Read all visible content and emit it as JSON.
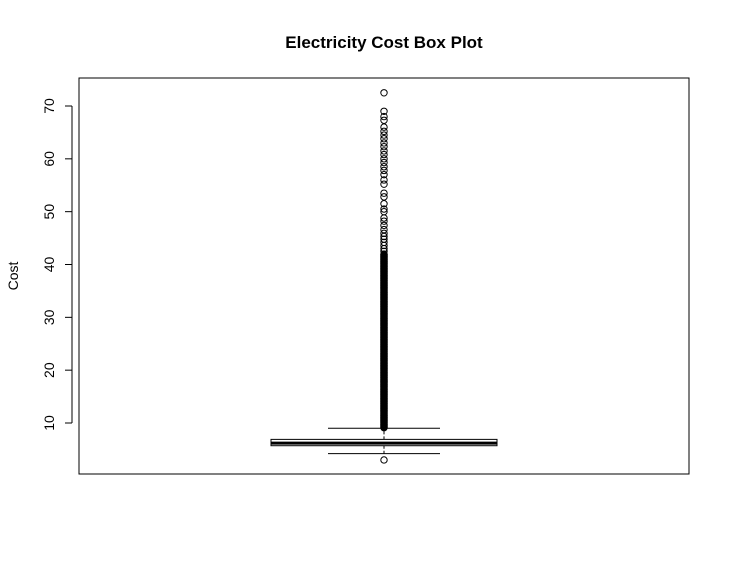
{
  "chart_data": {
    "type": "box",
    "title": "Electricity Cost Box Plot",
    "xlabel": "",
    "ylabel": "Cost",
    "ylim": [
      2,
      74
    ],
    "y_ticks": [
      10,
      20,
      30,
      40,
      50,
      60,
      70
    ],
    "grid": false,
    "box": {
      "whisker_low": 4.2,
      "q1": 5.7,
      "median": 6.2,
      "q3": 6.9,
      "whisker_high": 9.0
    },
    "outliers_low": [
      3.0
    ],
    "outliers_high_dense_range": [
      9.1,
      42.0
    ],
    "outliers_high": [
      42.5,
      43.0,
      43.6,
      44.2,
      44.8,
      45.3,
      45.9,
      46.6,
      47.4,
      48.2,
      48.8,
      50.0,
      50.5,
      51.5,
      52.8,
      53.5,
      55.2,
      56.0,
      57.0,
      57.8,
      58.5,
      59.3,
      60.0,
      60.8,
      61.5,
      62.3,
      63.0,
      63.8,
      64.5,
      65.2,
      66.0,
      67.3,
      68.0,
      69.0,
      72.5
    ],
    "colors": {
      "stroke": "#000000",
      "box_fill": "#ffffff"
    }
  }
}
